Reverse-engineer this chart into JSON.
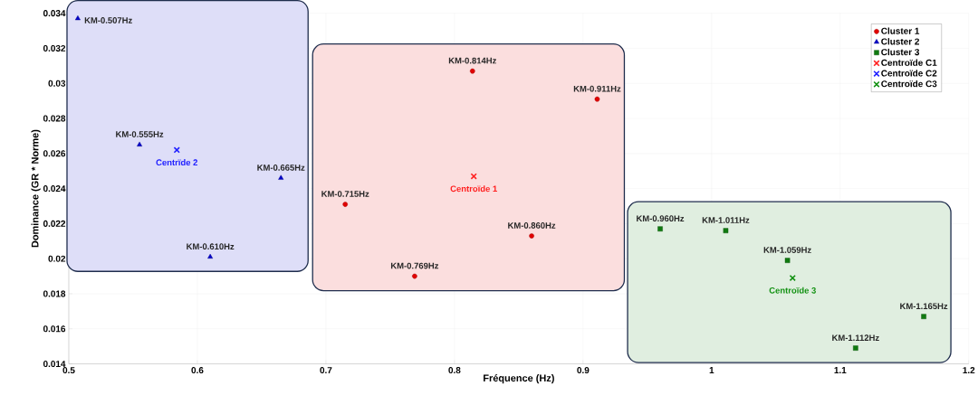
{
  "chart_data": {
    "type": "scatter",
    "xlabel": "Fréquence (Hz)",
    "ylabel": "Dominance (GR * Norme)",
    "xlim": [
      0.5,
      1.2
    ],
    "ylim": [
      0.014,
      0.034
    ],
    "xticks": [
      0.5,
      0.6,
      0.7,
      0.8,
      0.9,
      1,
      1.1,
      1.2
    ],
    "yticks": [
      0.014,
      0.016,
      0.018,
      0.02,
      0.022,
      0.024,
      0.026,
      0.028,
      0.03,
      0.032,
      0.034
    ],
    "grid": true,
    "legend": "top right",
    "series": [
      {
        "name": "Cluster 1",
        "color": "#e00000",
        "marker": "circle",
        "x": [
          0.715,
          0.769,
          0.814,
          0.86,
          0.911
        ],
        "values": [
          0.0231,
          0.019,
          0.0307,
          0.0213,
          0.0291
        ],
        "value_labels": [
          "KM-0.715Hz",
          "KM-0.769Hz",
          "KM-0.814Hz",
          "KM-0.860Hz",
          "KM-0.911Hz"
        ]
      },
      {
        "name": "Cluster 2",
        "color": "#0000c8",
        "marker": "triangle",
        "x": [
          0.507,
          0.555,
          0.61,
          0.665
        ],
        "values": [
          0.0337,
          0.0265,
          0.0201,
          0.0246
        ],
        "value_labels": [
          "KM-0.507Hz",
          "KM-0.555Hz",
          "KM-0.610Hz",
          "KM-0.665Hz"
        ]
      },
      {
        "name": "Cluster 3",
        "color": "#107a10",
        "marker": "square",
        "x": [
          0.96,
          1.011,
          1.059,
          1.112,
          1.165
        ],
        "values": [
          0.0217,
          0.0216,
          0.0199,
          0.0149,
          0.0167
        ],
        "value_labels": [
          "KM-0.960Hz",
          "KM-1.011Hz",
          "KM-1.059Hz",
          "KM-1.112Hz",
          "KM-1.165Hz"
        ]
      },
      {
        "name": "Centroïde C1",
        "color": "#ff2020",
        "marker": "cross",
        "x": [
          0.815
        ],
        "values": [
          0.0247
        ],
        "value_labels": [
          "Centroïde 1"
        ]
      },
      {
        "name": "Centroïde C2",
        "color": "#2020ff",
        "marker": "cross",
        "x": [
          0.584
        ],
        "values": [
          0.0262
        ],
        "value_labels": [
          "Centrïde 2"
        ]
      },
      {
        "name": "Centroïde C3",
        "color": "#109010",
        "marker": "cross",
        "x": [
          1.063
        ],
        "values": [
          0.0189
        ],
        "value_labels": [
          "Centroïde 3"
        ]
      }
    ]
  }
}
